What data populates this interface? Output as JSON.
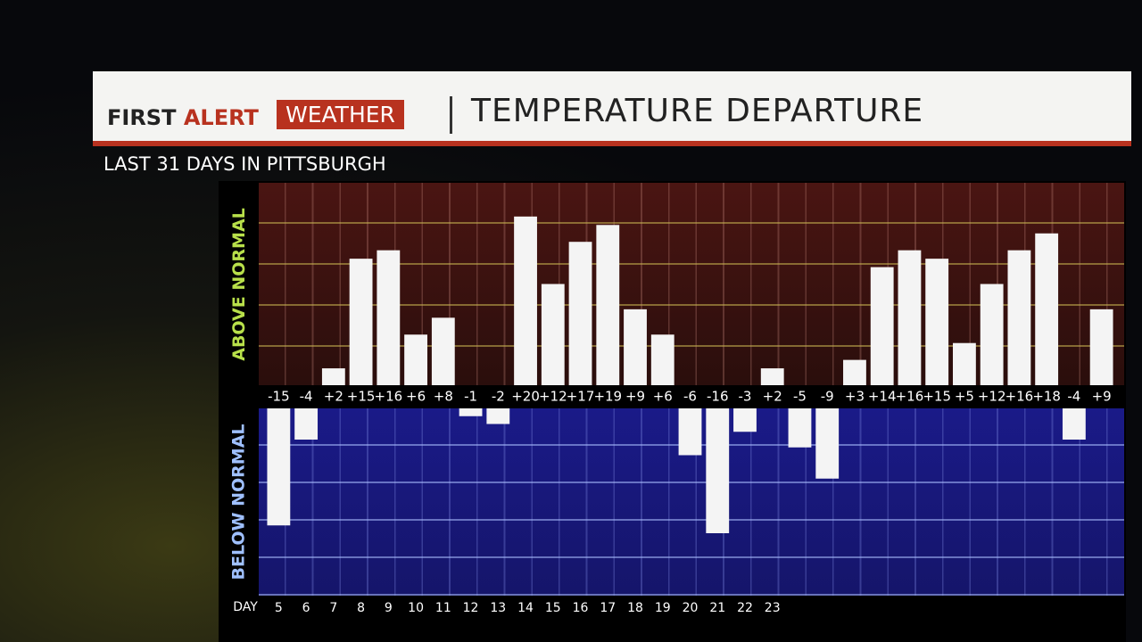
{
  "header": {
    "brand_first": "FIRST",
    "brand_alert": "ALERT",
    "brand_weather": "WEATHER",
    "title": "TEMPERATURE DEPARTURE"
  },
  "chart_data": {
    "type": "bar",
    "subtitle": "LAST 31 DAYS IN PITTSBURGH",
    "above_label": "ABOVE NORMAL",
    "below_label": "BELOW NORMAL",
    "x_label": "DAY",
    "categories": [
      "5",
      "6",
      "7",
      "8",
      "9",
      "10",
      "11",
      "12",
      "13",
      "14",
      "15",
      "16",
      "17",
      "18",
      "19",
      "20",
      "21",
      "22",
      "23",
      null,
      null,
      null,
      null,
      null,
      null,
      null,
      null,
      null,
      null,
      null,
      null
    ],
    "values": [
      -15,
      -4,
      2,
      15,
      16,
      6,
      8,
      -1,
      -2,
      20,
      12,
      17,
      19,
      9,
      6,
      -6,
      -16,
      -3,
      2,
      -5,
      -9,
      3,
      14,
      16,
      15,
      5,
      12,
      16,
      18,
      -4,
      9
    ],
    "value_labels": [
      "-15",
      "-4",
      "+2",
      "+15",
      "+16",
      "+6",
      "+8",
      "-1",
      "-2",
      "+20",
      "+12",
      "+17",
      "+19",
      "+9",
      "+6",
      "-6",
      "-16",
      "-3",
      "+2",
      "-5",
      "-9",
      "+3",
      "+14",
      "+16",
      "+15",
      "+5",
      "+12",
      "+16",
      "+18",
      "-4",
      "+9"
    ],
    "color": "#f4f4f4",
    "ylim": [
      -24,
      24
    ]
  }
}
